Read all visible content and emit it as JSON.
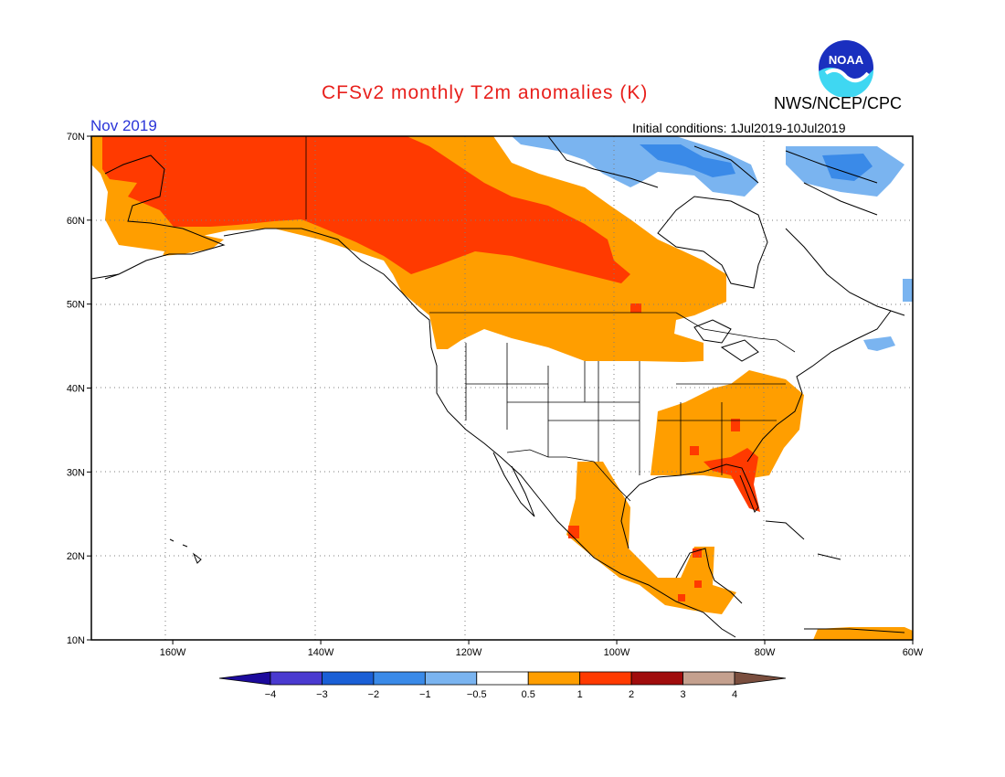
{
  "header": {
    "title": "CFSv2 monthly T2m anomalies (K)",
    "month": "Nov 2019",
    "initial_conditions": "Initial conditions: 1Jul2019-10Jul2019",
    "agency": "NWS/NCEP/CPC",
    "logo_text": "NOAA"
  },
  "map": {
    "lat_range": [
      10,
      70
    ],
    "lon_range": [
      -171,
      -60
    ],
    "lat_ticks": [
      {
        "value": 70,
        "label": "70N"
      },
      {
        "value": 60,
        "label": "60N"
      },
      {
        "value": 50,
        "label": "50N"
      },
      {
        "value": 40,
        "label": "40N"
      },
      {
        "value": 30,
        "label": "30N"
      },
      {
        "value": 20,
        "label": "20N"
      },
      {
        "value": 10,
        "label": "10N"
      }
    ],
    "lon_ticks": [
      {
        "value": -160,
        "label": "160W"
      },
      {
        "value": -140,
        "label": "140W"
      },
      {
        "value": -120,
        "label": "120W"
      },
      {
        "value": -100,
        "label": "100W"
      },
      {
        "value": -80,
        "label": "80W"
      },
      {
        "value": -60,
        "label": "60W"
      }
    ],
    "grid": "dotted"
  },
  "colorbar": {
    "colors": [
      "#1c0a9c",
      "#4a3ad0",
      "#1a5fd6",
      "#3a8ae8",
      "#7ab4f0",
      "#ffffff",
      "#ff9e00",
      "#ff3a00",
      "#a00c0c",
      "#c4a08e",
      "#7a4e3e"
    ],
    "labels": [
      "−4",
      "−3",
      "−2",
      "−1",
      "−0.5",
      "0.5",
      "1",
      "2",
      "3",
      "4"
    ]
  }
}
